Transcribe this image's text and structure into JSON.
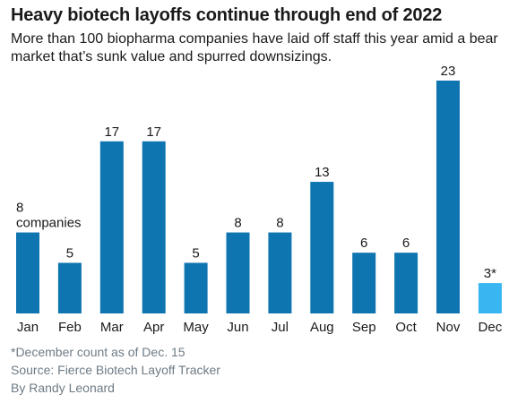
{
  "header": {
    "title": "Heavy biotech layoffs continue through end of 2022",
    "subtitle": "More than 100 biopharma companies have laid off staff this year amid a bear market that’s sunk value and spurred downsizings."
  },
  "chart_data": {
    "type": "bar",
    "categories": [
      "Jan",
      "Feb",
      "Mar",
      "Apr",
      "May",
      "Jun",
      "Jul",
      "Aug",
      "Sep",
      "Oct",
      "Nov",
      "Dec"
    ],
    "values": [
      8,
      5,
      17,
      17,
      5,
      8,
      8,
      13,
      6,
      6,
      23,
      3
    ],
    "value_labels": [
      "8",
      "5",
      "17",
      "17",
      "5",
      "8",
      "8",
      "13",
      "6",
      "6",
      "23",
      "3*"
    ],
    "first_bar_unit_label": "companies",
    "colors": {
      "bar": "#0f75b0",
      "highlight_bar": "#38b6f2",
      "text": "#1a1a1a"
    },
    "highlight_category": "Dec",
    "ylim": [
      0,
      23
    ],
    "grid": false,
    "legend": "none",
    "title": "",
    "xlabel": "",
    "ylabel": ""
  },
  "footer": {
    "note": "*December count as of Dec. 15",
    "source": "Source: Fierce Biotech Layoff Tracker",
    "byline": "By Randy Leonard"
  }
}
